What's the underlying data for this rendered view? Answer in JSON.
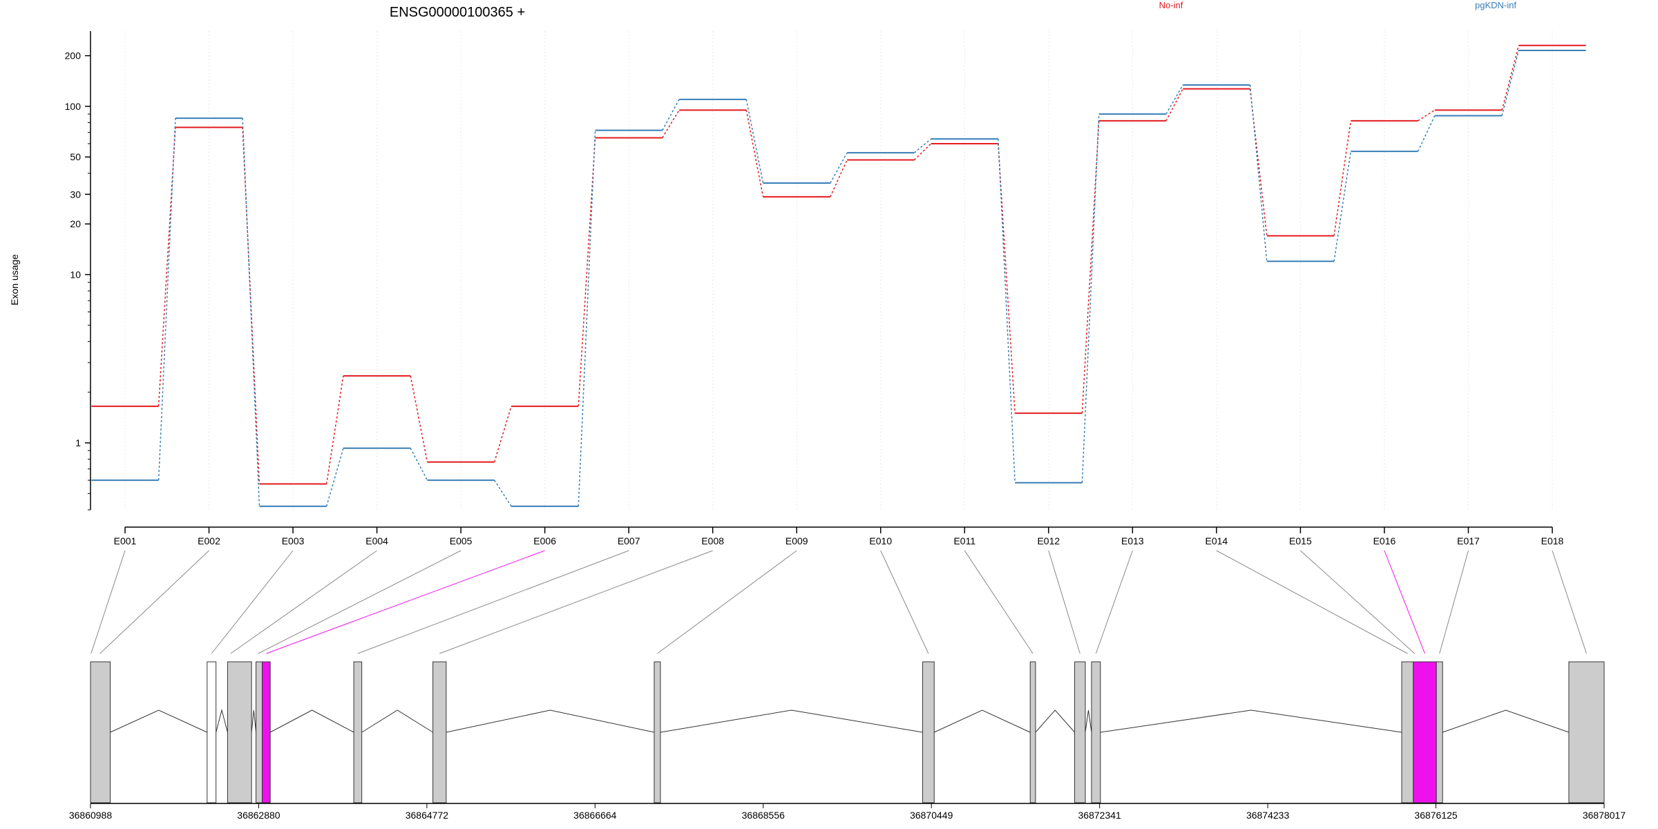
{
  "chart_data": {
    "type": "line",
    "title": "ENSG00000100365 +",
    "ylabel": "Exon usage",
    "xlabel": "",
    "yscale": "log",
    "ylim": [
      0.4,
      280
    ],
    "yticks": [
      1,
      10,
      20,
      30,
      50,
      100,
      200
    ],
    "grid": true,
    "legend_placement": "top-right",
    "categories": [
      "E001",
      "E002",
      "E003",
      "E004",
      "E005",
      "E006",
      "E007",
      "E008",
      "E009",
      "E010",
      "E011",
      "E012",
      "E013",
      "E014",
      "E015",
      "E016",
      "E017",
      "E018"
    ],
    "series": [
      {
        "name": "No-inf",
        "color": "#e41a1c",
        "values": [
          1.65,
          75,
          0.57,
          2.5,
          0.77,
          1.65,
          65,
          95,
          29,
          48,
          60,
          1.5,
          82,
          127,
          17,
          82,
          95,
          230
        ]
      },
      {
        "name": "pgKDN-inf",
        "color": "#377eb8",
        "values": [
          0.6,
          85,
          0.42,
          0.93,
          0.6,
          0.42,
          72,
          110,
          35,
          53,
          64,
          0.58,
          90,
          134,
          12,
          54,
          88,
          215
        ]
      }
    ],
    "highlight_color": "#ee11ee",
    "highlighted_exons": [
      "E006",
      "E016"
    ],
    "genomic_axis": {
      "tick_labels": [
        "36860988",
        "36862880",
        "36864772",
        "36866664",
        "36868556",
        "36870449",
        "36872341",
        "36874233",
        "36876125",
        "36878017"
      ],
      "range": [
        36860988,
        36878017
      ]
    },
    "gene_model": {
      "exons": [
        {
          "start": 36860988,
          "end": 36861210,
          "coding": true
        },
        {
          "start": 36862300,
          "end": 36862400,
          "coding": false
        },
        {
          "start": 36862530,
          "end": 36862800,
          "coding": true
        },
        {
          "start": 36862850,
          "end": 36862920,
          "coding": true
        },
        {
          "start": 36862920,
          "end": 36863010,
          "coding": true,
          "highlight": true
        },
        {
          "start": 36863950,
          "end": 36864040,
          "coding": true
        },
        {
          "start": 36864840,
          "end": 36864990,
          "coding": true
        },
        {
          "start": 36867330,
          "end": 36867400,
          "coding": true
        },
        {
          "start": 36870350,
          "end": 36870480,
          "coding": true
        },
        {
          "start": 36871560,
          "end": 36871620,
          "coding": true
        },
        {
          "start": 36872060,
          "end": 36872180,
          "coding": true
        },
        {
          "start": 36872250,
          "end": 36872350,
          "coding": true
        },
        {
          "start": 36875740,
          "end": 36875870,
          "coding": true
        },
        {
          "start": 36875870,
          "end": 36876130,
          "coding": true,
          "highlight": true
        },
        {
          "start": 36876130,
          "end": 36876200,
          "coding": true
        },
        {
          "start": 36877620,
          "end": 36878017,
          "coding": true
        }
      ],
      "exon_bins": [
        [
          36860988,
          36861000
        ],
        [
          36861080,
          36861110
        ],
        [
          36862300,
          36862400
        ],
        [
          36862530,
          36862600
        ],
        [
          36862850,
          36862900
        ],
        [
          36862920,
          36863010
        ],
        [
          36863950,
          36864040
        ],
        [
          36864840,
          36864990
        ],
        [
          36867330,
          36867400
        ],
        [
          36870350,
          36870480
        ],
        [
          36871560,
          36871620
        ],
        [
          36872060,
          36872180
        ],
        [
          36872250,
          36872350
        ],
        [
          36875740,
          36875870
        ],
        [
          36875870,
          36875900
        ],
        [
          36875870,
          36876130
        ],
        [
          36876130,
          36876200
        ],
        [
          36877620,
          36878017
        ]
      ]
    }
  }
}
